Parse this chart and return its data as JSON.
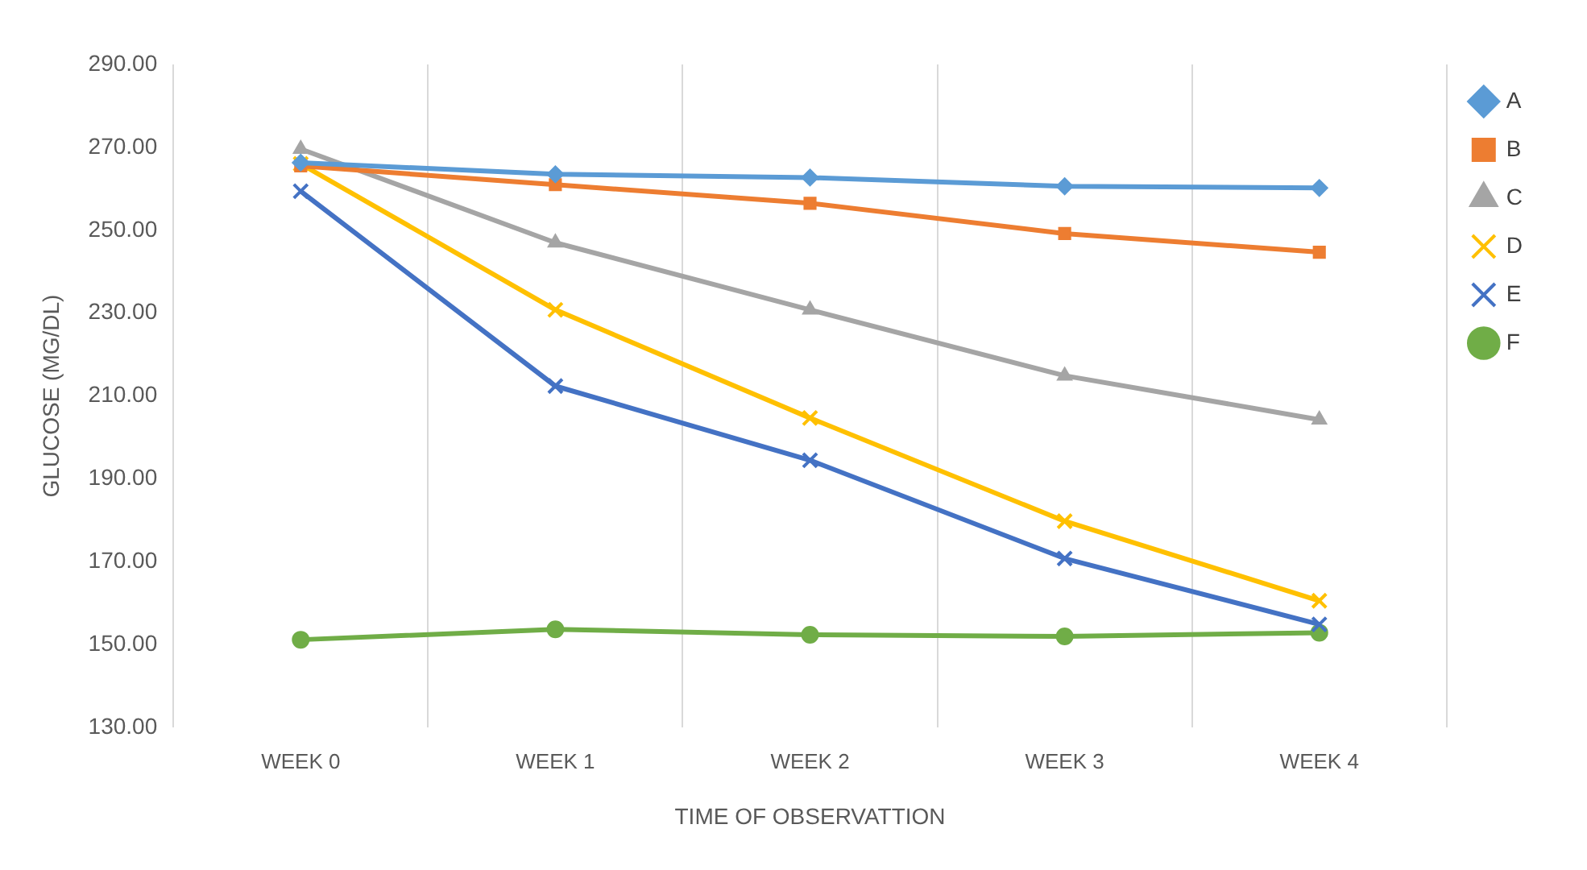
{
  "chart_data": {
    "type": "line",
    "xlabel": "TIME OF OBSERVATTION",
    "ylabel": "GLUCOSE (MG/DL)",
    "categories": [
      "WEEK 0",
      "WEEK 1",
      "WEEK 2",
      "WEEK 3",
      "WEEK 4"
    ],
    "series": [
      {
        "name": "A",
        "color": "#5b9bd5",
        "marker": "diamond",
        "values": [
          266.3,
          263.5,
          262.7,
          260.6,
          260.2
        ]
      },
      {
        "name": "B",
        "color": "#ed7d31",
        "marker": "square",
        "values": [
          265.5,
          261,
          256.5,
          249.2,
          244.7
        ]
      },
      {
        "name": "C",
        "color": "#a5a5a5",
        "marker": "triangle",
        "values": [
          269.6,
          247,
          230.8,
          214.9,
          204.3
        ]
      },
      {
        "name": "D",
        "color": "#ffc000",
        "marker": "cross",
        "values": [
          266,
          230.8,
          204.7,
          179.8,
          160.6
        ]
      },
      {
        "name": "E",
        "color": "#4472c4",
        "marker": "cross",
        "values": [
          259.4,
          212.4,
          194.5,
          170.8,
          154.9
        ]
      },
      {
        "name": "F",
        "color": "#70ad47",
        "marker": "circle",
        "values": [
          151.2,
          153.7,
          152.4,
          152,
          152.9
        ]
      }
    ],
    "ylim": [
      130,
      290
    ],
    "yticks": [
      {
        "value": 130,
        "label": "130.00"
      },
      {
        "value": 150,
        "label": "150.00"
      },
      {
        "value": 170,
        "label": "170.00"
      },
      {
        "value": 190,
        "label": "190.00"
      },
      {
        "value": 210,
        "label": "210.00"
      },
      {
        "value": 230,
        "label": "230.00"
      },
      {
        "value": 250,
        "label": "250.00"
      },
      {
        "value": 270,
        "label": "270.00"
      },
      {
        "value": 290,
        "label": "290.00"
      }
    ],
    "grid": "x",
    "legend": "right",
    "line_style": "solid"
  }
}
